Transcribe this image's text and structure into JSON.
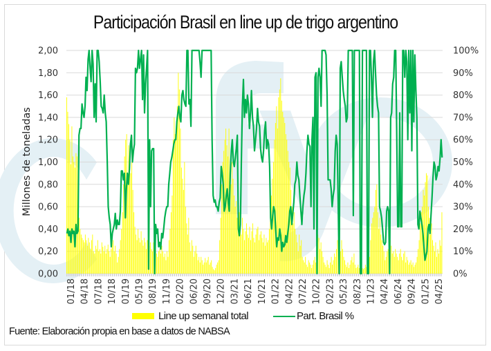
{
  "chart_data": {
    "type": "bar+line",
    "title": "Participación Brasil en line up de trigo argentino",
    "ylabel": "Millones de toneladas",
    "y2label": "",
    "xlabel": "",
    "ylim": [
      0,
      2.0
    ],
    "y2lim": [
      0,
      1.0
    ],
    "y_ticks": [
      "0,00",
      "0,20",
      "0,40",
      "0,60",
      "0,80",
      "1,00",
      "1,20",
      "1,40",
      "1,60",
      "1,80",
      "2,00"
    ],
    "y2_ticks": [
      "0%",
      "10%",
      "20%",
      "30%",
      "40%",
      "50%",
      "60%",
      "70%",
      "80%",
      "90%",
      "100%"
    ],
    "x_tick_labels": [
      "01/18",
      "04/18",
      "07/18",
      "10/18",
      "01/19",
      "05/19",
      "08/19",
      "11/19",
      "02/20",
      "06/20",
      "09/20",
      "12/20",
      "03/21",
      "06/21",
      "10/21",
      "01/22",
      "04/22",
      "07/22",
      "10/22",
      "02/23",
      "05/23",
      "08/23",
      "11/23",
      "04/24",
      "06/24",
      "09/24",
      "01/25",
      "04/25"
    ],
    "grid": true,
    "legend_position": "bottom",
    "series": [
      {
        "name": "Line up semanal total",
        "type": "bar",
        "axis": "left",
        "color": "#ffff00",
        "values": [
          1.58,
          1.45,
          1.34,
          1.2,
          0.98,
          1.32,
          1.05,
          1.0,
          0.95,
          1.08,
          1.05,
          0.6,
          0.5,
          0.4,
          0.35,
          0.32,
          0.3,
          0.28,
          0.35,
          0.3,
          0.25,
          0.32,
          0.28,
          0.22,
          0.3,
          0.35,
          0.2,
          0.18,
          0.25,
          0.22,
          0.3,
          0.2,
          0.22,
          0.18,
          0.28,
          0.24,
          0.2,
          0.25,
          0.18,
          0.22,
          0.26,
          0.2,
          0.15,
          0.22,
          0.28,
          0.3,
          0.2,
          0.25,
          0.18,
          0.1,
          0.15,
          0.22,
          0.3,
          0.4,
          0.55,
          0.8,
          1.05,
          1.2,
          1.25,
          0.9,
          1.15,
          1.0,
          0.9,
          1.0,
          0.75,
          0.55,
          0.42,
          0.35,
          0.3,
          0.4,
          0.32,
          0.28,
          0.38,
          0.3,
          0.25,
          0.32,
          0.28,
          0.22,
          0.3,
          0.2,
          0.25,
          0.28,
          0.22,
          0.2,
          0.28,
          0.3,
          0.22,
          0.18,
          0.15,
          0.2,
          0.22,
          0.18,
          0.25,
          0.2,
          0.15,
          0.18,
          0.12,
          0.2,
          0.15,
          0.3,
          0.4,
          0.55,
          0.7,
          1.2,
          1.4,
          1.25,
          1.32,
          1.5,
          1.8,
          1.65,
          1.3,
          0.95,
          0.85,
          0.75,
          1.0,
          0.6,
          0.45,
          0.35,
          0.5,
          0.28,
          0.2,
          0.3,
          0.25,
          0.15,
          0.2,
          0.25,
          0.18,
          0.12,
          0.15,
          0.1,
          0.15,
          0.12,
          0.08,
          0.1,
          0.14,
          0.1,
          0.12,
          0.15,
          0.08,
          0.1,
          0.12,
          0.06,
          0.04,
          0.03,
          0.05,
          0.08,
          0.1,
          0.12,
          0.3,
          0.5,
          0.8,
          1.0,
          1.1,
          1.2,
          1.3,
          1.15,
          1.05,
          1.3,
          0.9,
          0.8,
          1.0,
          0.85,
          0.7,
          0.6,
          0.65,
          0.5,
          0.4,
          0.55,
          0.45,
          0.35,
          0.5,
          0.4,
          0.3,
          0.38,
          0.45,
          0.35,
          0.32,
          0.42,
          0.3,
          0.38,
          0.45,
          0.32,
          0.28,
          0.35,
          0.4,
          0.42,
          0.3,
          0.35,
          0.38,
          0.32,
          0.28,
          0.35,
          0.25,
          0.32,
          0.28,
          0.3,
          0.4,
          0.55,
          0.7,
          0.85,
          1.0,
          1.2,
          1.35,
          1.5,
          1.3,
          1.58,
          1.65,
          1.75,
          1.55,
          1.45,
          1.4,
          1.35,
          1.25,
          1.2,
          1.1,
          1.0,
          0.95,
          0.75,
          0.6,
          0.45,
          0.55,
          0.4,
          0.35,
          0.28,
          0.2,
          0.35,
          0.25,
          0.3,
          0.15,
          0.12,
          0.1,
          0.15,
          0.08,
          0.06,
          0.12,
          0.1,
          0.08,
          0.05,
          0.08,
          0.12,
          0.15,
          0.1,
          0.25,
          0.35,
          0.32,
          0.22,
          0.28,
          0.2,
          0.15,
          0.1,
          0.08,
          0.06,
          0.12,
          0.08,
          0.05,
          0.1,
          0.15,
          0.08,
          0.12,
          0.18,
          0.15,
          0.22,
          0.3,
          0.38,
          0.25,
          0.2,
          0.3,
          0.22,
          0.15,
          0.12,
          0.08,
          0.06,
          0.1,
          0.05,
          0.08,
          0.12,
          0.15,
          0.1,
          0.18,
          0.08,
          0.05,
          0.06,
          0.08,
          0.05,
          0.04,
          0.06,
          0.05,
          0.04,
          0.05,
          0.08,
          0.06,
          0.05,
          0.1,
          0.15,
          0.3,
          0.45,
          0.5,
          0.55,
          0.6,
          0.75,
          0.8,
          0.55,
          0.4,
          0.5,
          0.35,
          0.3,
          0.25,
          0.2,
          0.12,
          0.15,
          0.2,
          0.22,
          0.18,
          0.3,
          0.25,
          0.18,
          0.2,
          0.15,
          0.22,
          0.18,
          0.15,
          0.12,
          0.18,
          0.22,
          0.15,
          0.12,
          0.18,
          0.2,
          0.1,
          0.15,
          0.12,
          0.08,
          0.1,
          0.12,
          0.08,
          0.1,
          0.06,
          0.08,
          0.1,
          0.15,
          0.22,
          0.3,
          0.45,
          0.55,
          0.6,
          0.75,
          0.7,
          0.82,
          0.9,
          0.88,
          0.6,
          0.5,
          0.35,
          0.45,
          0.3,
          0.25,
          0.2,
          0.28,
          0.15,
          0.22,
          0.18,
          0.3,
          0.25,
          0.55
        ]
      },
      {
        "name": "Part. Brasil %",
        "type": "line",
        "axis": "right",
        "color": "#00b050",
        "values": [
          0.18,
          0.2,
          0.17,
          0.19,
          0.14,
          0.2,
          0.18,
          0.19,
          0.12,
          0.22,
          0.18,
          0.19,
          0.62,
          0.65,
          0.65,
          0.76,
          0.72,
          0.7,
          0.75,
          0.88,
          0.82,
          0.96,
          1.0,
          0.92,
          0.86,
          1.0,
          0.94,
          0.7,
          0.85,
          0.68,
          1.0,
          1.0,
          0.95,
          0.86,
          0.75,
          0.74,
          0.72,
          0.8,
          0.72,
          0.68,
          0.5,
          0.3,
          0.25,
          0.22,
          0.12,
          0.18,
          0.2,
          0.22,
          0.27,
          0.2,
          0.24,
          0.22,
          0.22,
          0.28,
          0.46,
          0.46,
          0.42,
          0.45,
          0.25,
          0.38,
          0.45,
          0.4,
          0.47,
          0.58,
          0.62,
          0.5,
          0.55,
          0.58,
          0.92,
          0.9,
          0.92,
          1.0,
          0.92,
          0.96,
          1.0,
          0.78,
          0.98,
          0.72,
          0.85,
          0.92,
          1.0,
          0.02,
          0.6,
          0.3,
          0.55,
          0.56,
          0.56,
          0.0,
          0.22,
          0.18,
          0.2,
          0.12,
          0.14,
          0.11,
          0.18,
          0.16,
          0.2,
          0.25,
          0.28,
          0.3,
          0.3,
          0.4,
          0.45,
          0.5,
          0.52,
          0.55,
          0.58,
          0.6,
          0.6,
          0.68,
          0.72,
          0.75,
          0.7,
          0.68,
          0.8,
          0.82,
          0.78,
          0.76,
          0.75,
          1.0,
          1.0,
          0.76,
          0.78,
          0.66,
          1.0,
          1.0,
          1.0,
          1.0,
          1.0,
          1.0,
          1.0,
          1.0,
          0.95,
          0.88,
          1.0,
          1.0,
          1.0,
          1.0,
          1.0,
          1.0,
          1.0,
          1.0,
          1.0,
          1.0,
          0.6,
          0.35,
          0.32,
          0.33,
          0.3,
          0.3,
          0.28,
          0.32,
          0.34,
          0.48,
          0.45,
          0.4,
          0.28,
          0.3,
          0.35,
          0.38,
          0.32,
          0.28,
          0.45,
          0.55,
          0.6,
          0.5,
          0.48,
          0.52,
          0.56,
          0.62,
          0.2,
          0.17,
          0.22,
          0.5,
          0.75,
          0.87,
          0.7,
          0.78,
          0.72,
          0.8,
          0.76,
          0.65,
          0.72,
          0.82,
          0.7,
          0.66,
          0.55,
          0.6,
          0.65,
          0.74,
          0.68,
          0.66,
          0.56,
          0.52,
          0.5,
          0.55,
          0.64,
          0.68,
          0.56,
          0.6,
          0.58,
          0.48,
          0.25,
          0.2,
          0.26,
          0.3,
          0.28,
          0.2,
          0.12,
          0.16,
          0.15,
          0.2,
          0.17,
          0.1,
          0.14,
          0.12,
          0.13,
          0.17,
          0.14,
          0.18,
          0.22,
          0.28,
          0.3,
          0.22,
          0.27,
          0.32,
          0.4,
          0.42,
          0.5,
          0.44,
          0.42,
          0.35,
          0.28,
          0.22,
          0.3,
          0.35,
          0.38,
          0.45,
          0.55,
          0.62,
          0.58,
          0.57,
          0.3,
          0.6,
          0.7,
          0.2,
          0.88,
          0.9,
          0.0,
          0.88,
          0.92,
          0.88,
          0.75,
          1.0,
          1.0,
          1.0,
          1.0,
          0.98,
          0.8,
          0.42,
          0.42,
          0.42,
          0.38,
          0.3,
          0.35,
          0.38,
          0.55,
          0.62,
          0.58,
          0.3,
          0.0,
          0.92,
          0.95,
          0.88,
          0.82,
          0.78,
          0.75,
          0.68,
          0.7,
          1.0,
          1.0,
          1.0,
          1.0,
          1.0,
          0.26,
          1.0,
          1.0,
          1.0,
          1.0,
          1.0,
          1.0,
          0.0,
          0.0,
          1.0,
          1.0,
          1.0,
          1.0,
          1.0,
          0.0,
          0.0,
          1.0,
          1.0,
          0.87,
          0.7,
          0.95,
          1.0,
          0.9,
          0.8,
          0.75,
          0.72,
          0.3,
          0.28,
          0.25,
          0.2,
          0.14,
          0.13,
          0.14,
          0.28,
          0.3,
          0.28,
          0.0,
          0.7,
          0.72,
          0.85,
          0.88,
          1.0,
          1.0,
          0.65,
          0.21,
          0.21,
          0.72,
          0.21,
          0.21,
          1.0,
          1.0,
          0.88,
          1.0,
          0.95,
          0.6,
          1.0,
          0.72,
          1.0,
          0.55,
          1.0,
          0.68,
          0.98,
          0.82,
          0.7,
          0.22,
          0.2,
          0.28,
          0.25,
          0.22,
          0.18,
          0.12,
          0.06,
          0.08,
          0.1,
          0.2,
          0.22,
          0.18,
          0.26,
          0.34,
          0.43,
          0.5,
          0.48,
          0.42,
          0.44,
          0.48,
          0.46,
          0.52,
          0.6,
          0.52
        ]
      }
    ]
  },
  "legend": {
    "bar_label": "Line up semanal total",
    "line_label": "Part. Brasil %"
  },
  "source": "Fuente: Elaboración propia en base a datos de NABSA",
  "watermark": "fyo"
}
